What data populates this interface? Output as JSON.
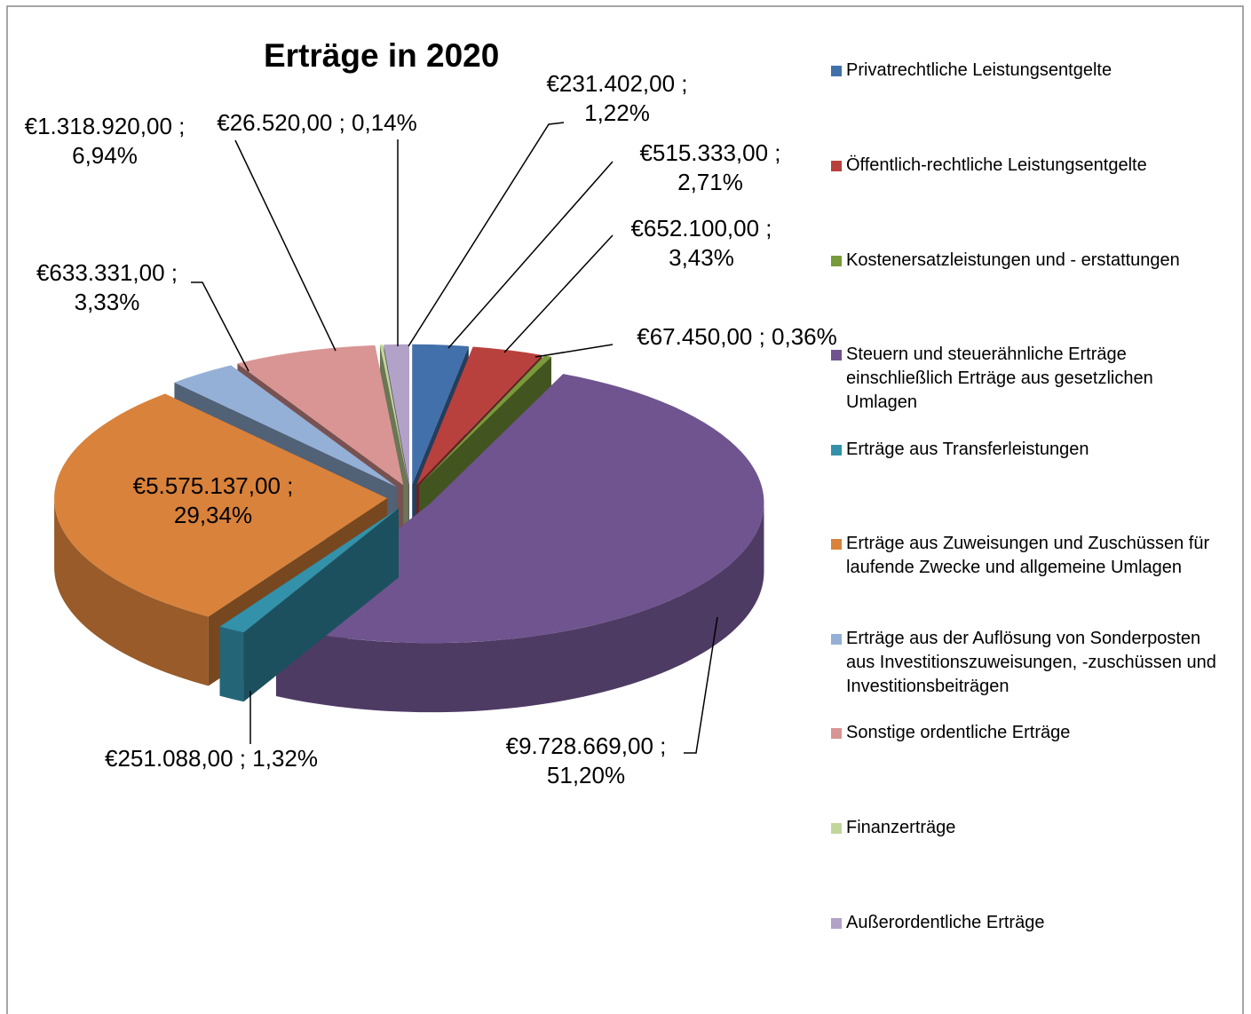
{
  "chart_data": {
    "type": "pie",
    "title": "Erträge in 2020",
    "categories": [
      "Privatrechtliche Leistungsentgelte",
      "Öffentlich-rechtliche Leistungsentgelte",
      "Kostenersatzleistungen und - erstattungen",
      "Steuern und steuerähnliche Erträge einschließlich Erträge aus gesetzlichen Umlagen",
      "Erträge aus Transferleistungen",
      "Erträge aus Zuweisungen und Zuschüssen für laufende Zwecke und allgemeine Umlagen",
      "Erträge aus der Auflösung von Sonderposten aus Investitionszuweisungen, -zuschüssen und Investitionsbeiträgen",
      "Sonstige ordentliche Erträge",
      "Finanzerträge",
      "Außerordentliche Erträge"
    ],
    "values": [
      515333,
      652100,
      67450,
      9728669,
      251088,
      5575137,
      633331,
      1318920,
      26520,
      231402
    ],
    "value_labels": [
      "€515.333,00 ; 2,71%",
      "€652.100,00 ; 3,43%",
      "€67.450,00 ; 0,36%",
      "€9.728.669,00 ; 51,20%",
      "€251.088,00 ; 1,32%",
      "€5.575.137,00 ; 29,34%",
      "€633.331,00 ; 3,33%",
      "€1.318.920,00 ; 6,94%",
      "€26.520,00 ; 0,14%",
      "€231.402,00 ; 1,22%"
    ],
    "colors": [
      "#4170ab",
      "#b8413e",
      "#789a3a",
      "#6f548f",
      "#3491aa",
      "#d9823b",
      "#94b0d6",
      "#d99593",
      "#c2d69a",
      "#b2a2c8"
    ],
    "legend": "right"
  }
}
